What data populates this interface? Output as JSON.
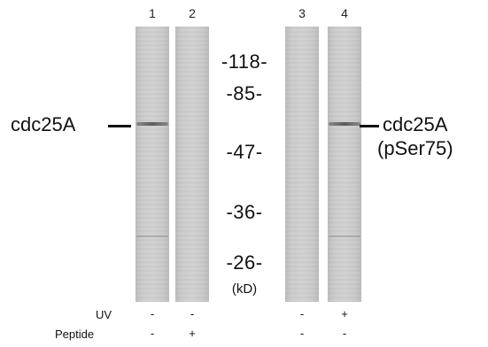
{
  "lanes": [
    {
      "number": "1",
      "uv": "-",
      "peptide": "-",
      "band_present": true
    },
    {
      "number": "2",
      "uv": "-",
      "peptide": "+",
      "band_present": false
    },
    {
      "number": "3",
      "uv": "-",
      "peptide": "-",
      "band_present": false
    },
    {
      "number": "4",
      "uv": "+",
      "peptide": "-",
      "band_present": true
    }
  ],
  "markers": [
    "-118-",
    "-85-",
    "-47-",
    "-36-",
    "-26-"
  ],
  "unit_label": "(kD)",
  "left_label": "cdc25A",
  "right_label_line1": "cdc25A",
  "right_label_line2": "(pSer75)",
  "row_labels": {
    "uv": "UV",
    "peptide": "Peptide"
  }
}
